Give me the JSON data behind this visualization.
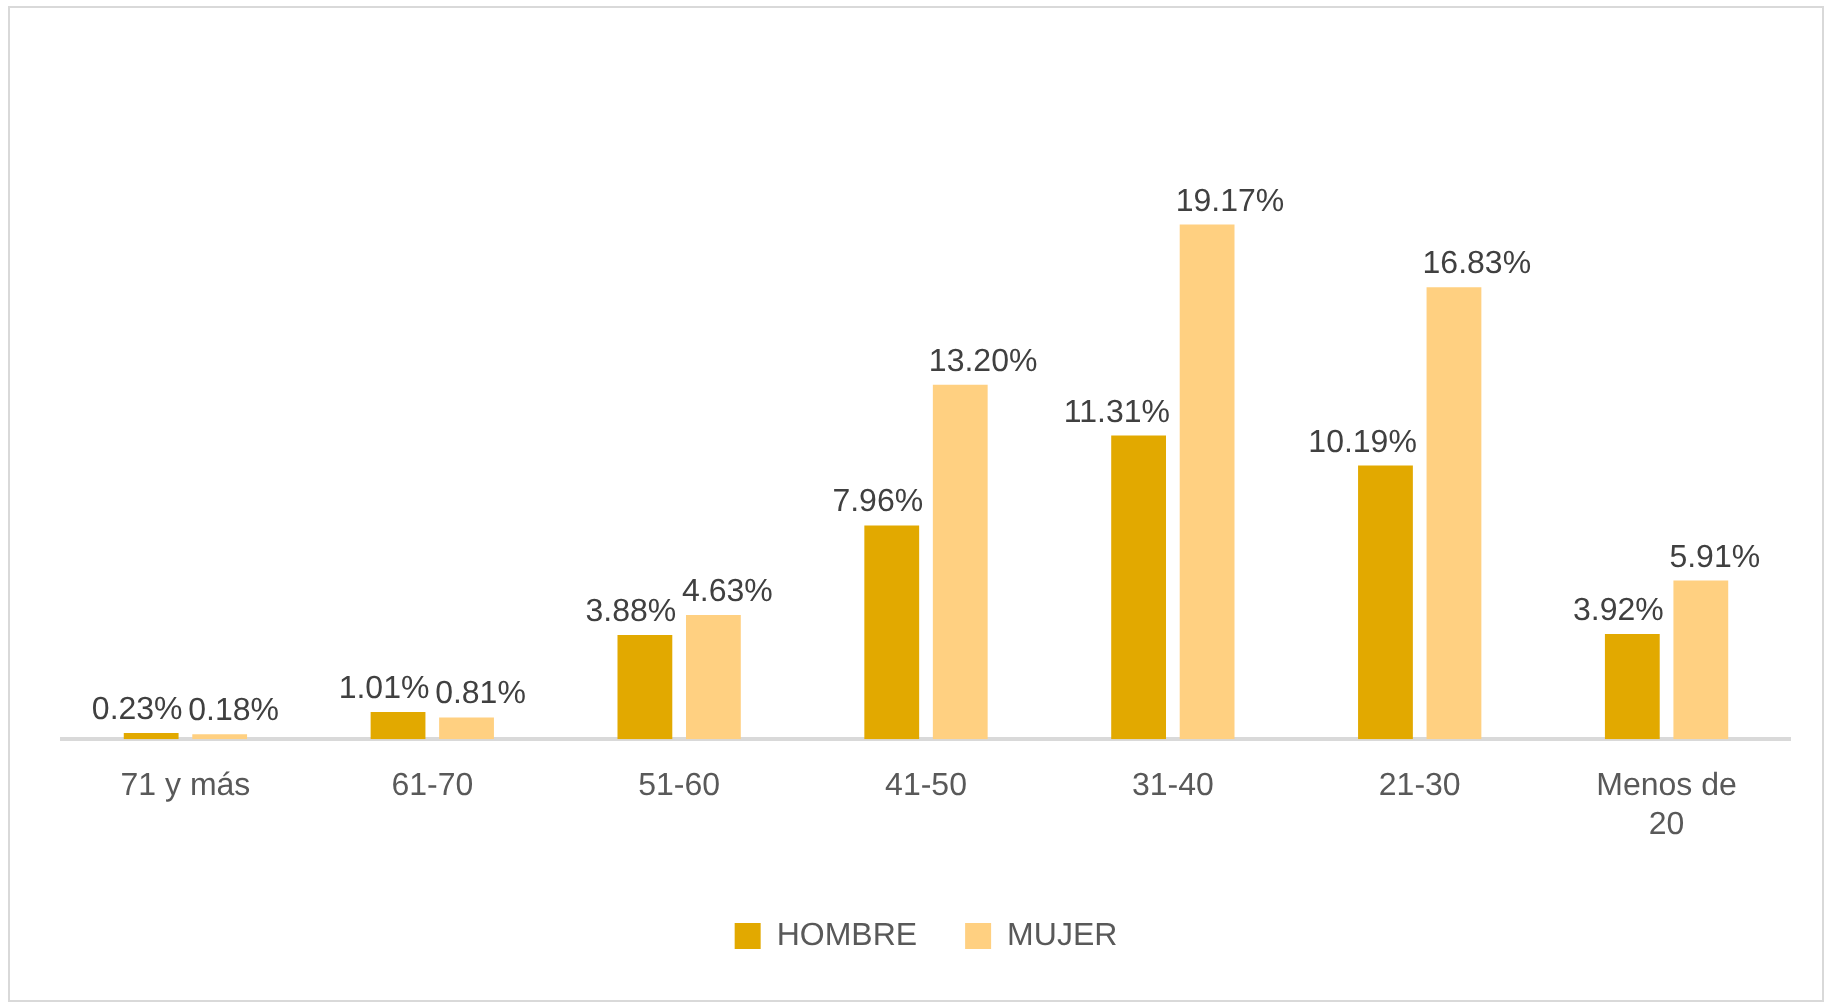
{
  "chart_data": {
    "type": "bar",
    "categories": [
      "71 y más",
      "61-70",
      "51-60",
      "41-50",
      "31-40",
      "21-30",
      "Menos de 20"
    ],
    "series": [
      {
        "name": "HOMBRE",
        "color": "#e2a900",
        "values": [
          0.23,
          1.01,
          3.88,
          7.96,
          11.31,
          10.19,
          3.92
        ],
        "value_labels": [
          "0.23%",
          "1.01%",
          "3.88%",
          "7.96%",
          "11.31%",
          "10.19%",
          "3.92%"
        ]
      },
      {
        "name": "MUJER",
        "color": "#ffd081",
        "values": [
          0.18,
          0.81,
          4.63,
          13.2,
          19.17,
          16.83,
          5.91
        ],
        "value_labels": [
          "0.18%",
          "0.81%",
          "4.63%",
          "13.20%",
          "19.17%",
          "16.83%",
          "5.91%"
        ]
      }
    ],
    "legend": "bottom"
  }
}
